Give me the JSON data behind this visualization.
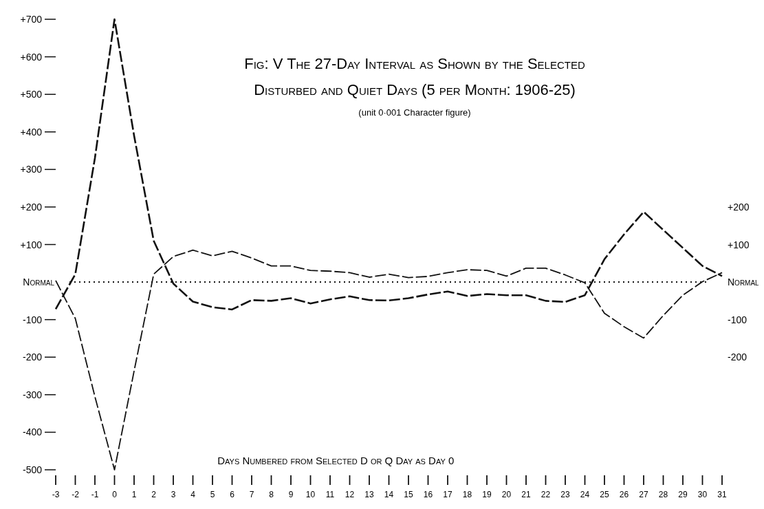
{
  "chart_data": {
    "type": "line",
    "title": "Fig: V The 27-Day Interval as Shown by the Selected",
    "subtitle": "Disturbed and Quiet Days (5 per Month: 1906-25)",
    "annotations": [
      "(unit 0·001 Character figure)"
    ],
    "xlabel": "Days Numbered from Selected D or Q Day as Day 0",
    "x": [
      -3,
      -2,
      -1,
      0,
      1,
      2,
      3,
      4,
      5,
      6,
      7,
      8,
      9,
      10,
      11,
      12,
      13,
      14,
      15,
      16,
      17,
      18,
      19,
      20,
      21,
      22,
      23,
      24,
      25,
      26,
      27,
      28,
      29,
      30,
      31
    ],
    "series": [
      {
        "color": "#111111",
        "line_style": "dashed",
        "values": [
          -72,
          21,
          330,
          700,
          390,
          110,
          -4,
          -52,
          -67,
          -73,
          -48,
          -50,
          -43,
          -57,
          -46,
          -38,
          -48,
          -49,
          -43,
          -33,
          -25,
          -37,
          -32,
          -35,
          -35,
          -50,
          -53,
          -35,
          61,
          127,
          187,
          139,
          91,
          43,
          16
        ]
      },
      {
        "color": "#111111",
        "line_style": "dashed",
        "values": [
          4,
          -97,
          -305,
          -500,
          -237,
          21,
          68,
          85,
          70,
          82,
          64,
          43,
          43,
          31,
          29,
          25,
          13,
          21,
          12,
          15,
          25,
          33,
          31,
          16,
          37,
          37,
          19,
          -2,
          -83,
          -119,
          -149,
          -89,
          -35,
          1,
          25
        ]
      }
    ],
    "xlim": [
      -3,
      31
    ],
    "xticks": [
      -3,
      -2,
      -1,
      0,
      1,
      2,
      3,
      4,
      5,
      6,
      7,
      8,
      9,
      10,
      11,
      12,
      13,
      14,
      15,
      16,
      17,
      18,
      19,
      20,
      21,
      22,
      23,
      24,
      25,
      26,
      27,
      28,
      29,
      30,
      31
    ],
    "ylim": [
      -500,
      700
    ],
    "yticks": [
      {
        "value": 700,
        "label": "+700"
      },
      {
        "value": 600,
        "label": "+600"
      },
      {
        "value": 500,
        "label": "+500"
      },
      {
        "value": 400,
        "label": "+400"
      },
      {
        "value": 300,
        "label": "+300"
      },
      {
        "value": 200,
        "label": "+200"
      },
      {
        "value": 100,
        "label": "+100"
      },
      {
        "value": 0,
        "label": "Normal"
      },
      -100,
      -200,
      -300,
      -400,
      -500
    ],
    "y2lim": [
      -200,
      200
    ],
    "y2ticks": [
      {
        "value": 200,
        "label": "+200"
      },
      {
        "value": 100,
        "label": "+100"
      },
      {
        "value": 0,
        "label": "Normal"
      },
      -100,
      -200
    ],
    "ref_lines": [
      {
        "axis": "y",
        "value": 0,
        "line_style": "dotted",
        "color": "#111111"
      }
    ],
    "grid": false,
    "marker": "none"
  }
}
